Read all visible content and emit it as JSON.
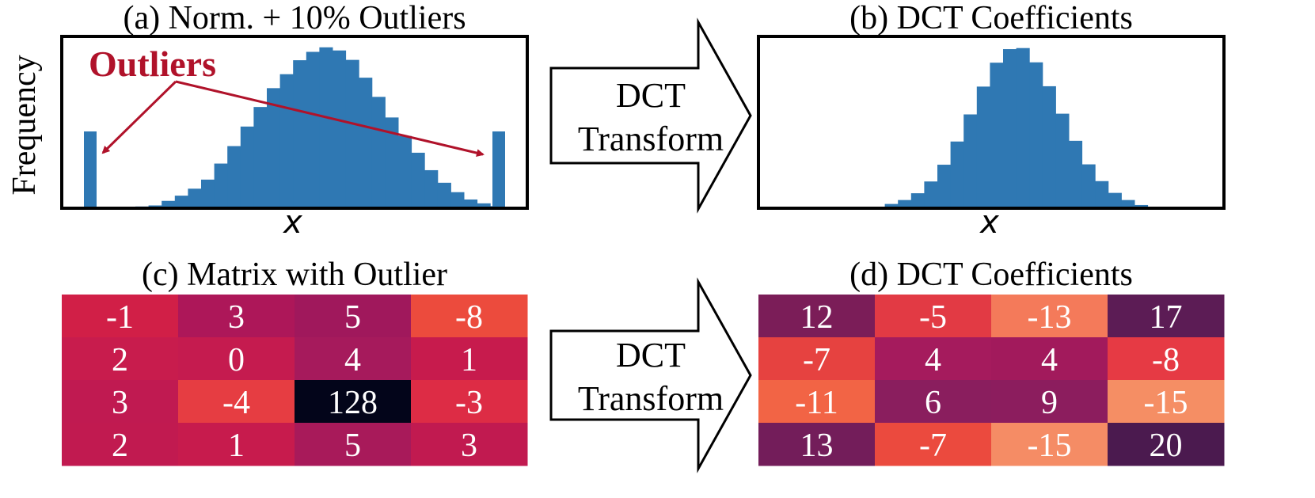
{
  "panels": {
    "a": {
      "title": "(a) Norm. + 10% Outliers"
    },
    "b": {
      "title": "(b) DCT Coefficients"
    },
    "c": {
      "title": "(c) Matrix with Outlier"
    },
    "d": {
      "title": "(d) DCT Coefficients"
    }
  },
  "annotation": {
    "outliers_label": "Outliers"
  },
  "arrows": {
    "line1": "DCT",
    "line2": "Transform"
  },
  "colors": {
    "bar": "#2f78b3",
    "outlier_arrow": "#b0122a"
  },
  "chart_data": [
    {
      "type": "bar",
      "title": "(a) Norm. + 10% Outliers",
      "xlabel": "x",
      "ylabel": "Frequency",
      "values": [
        0.5,
        0.8,
        2.1,
        3.6,
        5.6,
        8.2,
        12.8,
        17.8,
        23.4,
        29.0,
        34.4,
        38.4,
        42.4,
        44.8,
        46.1,
        45.2,
        42.5,
        37.4,
        31.9,
        26.0,
        20.7,
        15.9,
        10.9,
        7.3,
        4.6,
        2.5,
        1.4,
        0.6
      ],
      "outliers": [
        {
          "side": "left",
          "value": 22
        },
        {
          "side": "right",
          "value": 22
        }
      ],
      "grid": false
    },
    {
      "type": "bar",
      "title": "(b) DCT Coefficients",
      "xlabel": "x",
      "ylabel": "",
      "values": [
        0.4,
        1.2,
        2.3,
        4.2,
        7.5,
        12.2,
        18.7,
        26.3,
        34.1,
        40.8,
        44.6,
        44.9,
        40.9,
        34.2,
        26.5,
        18.9,
        12.3,
        7.6,
        4.3,
        2.3,
        0.9
      ],
      "grid": false
    },
    {
      "type": "heatmap",
      "title": "(c) Matrix with Outlier",
      "matrix": [
        [
          -1,
          3,
          5,
          -8
        ],
        [
          2,
          0,
          4,
          1
        ],
        [
          3,
          -4,
          128,
          -3
        ],
        [
          2,
          1,
          5,
          3
        ]
      ],
      "labels": [
        [
          "-1",
          "3",
          "5",
          "-8"
        ],
        [
          "2",
          "0",
          "4",
          "1"
        ],
        [
          "3",
          "-4",
          "128",
          "-3"
        ],
        [
          "2",
          "1",
          "5",
          "3"
        ]
      ],
      "colors": [
        [
          "#d11f47",
          "#ad1759",
          "#a0185c",
          "#ec4b3d"
        ],
        [
          "#c81c4d",
          "#c51b4f",
          "#a61a5c",
          "#c71b4d"
        ],
        [
          "#c01a51",
          "#e63d42",
          "#03051a",
          "#dd2c45"
        ],
        [
          "#c11a50",
          "#c71b4d",
          "#a81a5a",
          "#c11a50"
        ]
      ]
    },
    {
      "type": "heatmap",
      "title": "(d) DCT Coefficients",
      "matrix": [
        [
          12,
          -5,
          -13,
          17
        ],
        [
          -7,
          4,
          4,
          -8
        ],
        [
          -11,
          6,
          9,
          -15
        ],
        [
          13,
          -7,
          -15,
          20
        ]
      ],
      "labels": [
        [
          "12",
          "-5",
          "-13",
          "17"
        ],
        [
          "-7",
          "4",
          "4",
          "-8"
        ],
        [
          "-11",
          "6",
          "9",
          "-15"
        ],
        [
          "13",
          "-7",
          "-15",
          "20"
        ]
      ],
      "colors": [
        [
          "#7b1d58",
          "#e23a44",
          "#f47a5a",
          "#5c1c55"
        ],
        [
          "#e64240",
          "#a51b5d",
          "#a21a5c",
          "#e63a44"
        ],
        [
          "#f26445",
          "#8a1e5e",
          "#8c1d5e",
          "#f58e64"
        ],
        [
          "#731d5a",
          "#eb4a3e",
          "#f58c65",
          "#4b1a4f"
        ]
      ]
    }
  ]
}
